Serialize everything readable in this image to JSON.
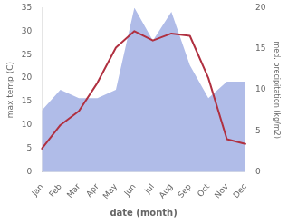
{
  "chart_data": {
    "type": "line",
    "categories": [
      "Jan",
      "Feb",
      "Mar",
      "Apr",
      "May",
      "Jun",
      "Jul",
      "Aug",
      "Sep",
      "Oct",
      "Nov",
      "Dec"
    ],
    "series": [
      {
        "type": "area",
        "axis": "y2",
        "color": "#b0bce8",
        "values": [
          7.5,
          10,
          9,
          9,
          10,
          20,
          16,
          19.5,
          13,
          9,
          11,
          11
        ]
      },
      {
        "type": "line",
        "color": "#b03040",
        "values": [
          5,
          10,
          13,
          19,
          26.5,
          30,
          28,
          29.5,
          29,
          20,
          7,
          6
        ]
      }
    ],
    "xlabel": "date (month)",
    "ylabel": "max temp (C)",
    "y2label": "med. precipitation (kg/m2)",
    "ylim": [
      0,
      35
    ],
    "yticks": [
      0,
      5,
      10,
      15,
      20,
      25,
      30,
      35
    ],
    "y2lim": [
      0,
      20
    ],
    "y2ticks": [
      0,
      5,
      10,
      15,
      20
    ],
    "grid": false
  }
}
